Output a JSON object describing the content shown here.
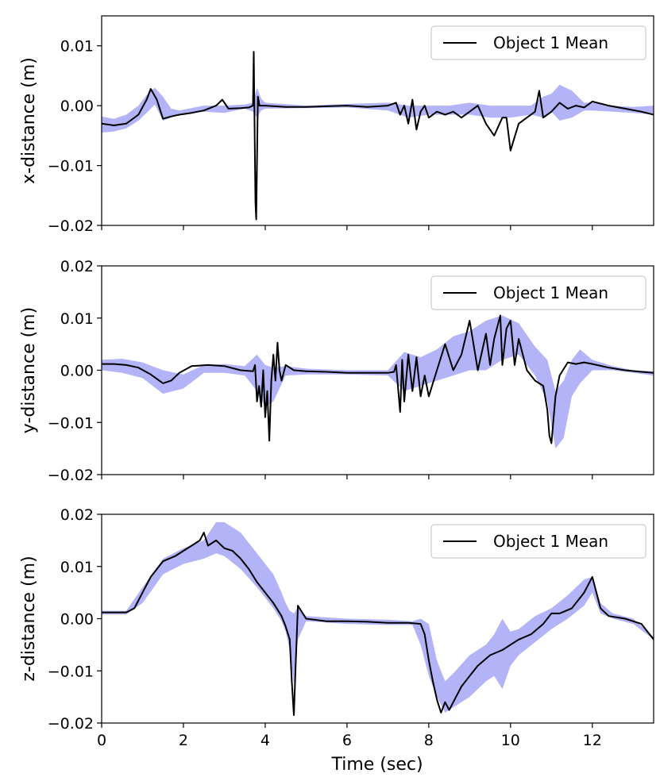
{
  "figure": {
    "xlabel": "Time (sec)",
    "legend_label": "Object 1 Mean"
  },
  "chart_data": [
    {
      "type": "line",
      "ylabel": "x-distance (m)",
      "xlim": [
        0,
        13.5
      ],
      "ylim": [
        -0.02,
        0.015
      ],
      "yticks": [
        0.01,
        0.0,
        -0.01,
        -0.02
      ],
      "ytick_labels": [
        "0.01",
        "0.00",
        "−0.01",
        "−0.02"
      ],
      "xticks": [
        0,
        2,
        4,
        6,
        8,
        10,
        12
      ],
      "legend": "top-right",
      "band_color": "#b3b3f7",
      "line_color": "#000000",
      "series": [
        {
          "name": "Object 1 Mean",
          "x": [
            0,
            0.3,
            0.6,
            0.9,
            1.1,
            1.2,
            1.35,
            1.5,
            1.7,
            1.9,
            2.2,
            2.5,
            2.8,
            2.95,
            3.1,
            3.4,
            3.6,
            3.7,
            3.72,
            3.76,
            3.78,
            3.82,
            3.86,
            4.0,
            4.5,
            5.0,
            5.5,
            6.0,
            6.5,
            7.0,
            7.2,
            7.3,
            7.4,
            7.5,
            7.6,
            7.7,
            7.8,
            7.9,
            8.0,
            8.2,
            8.4,
            8.6,
            8.8,
            9.0,
            9.2,
            9.4,
            9.6,
            9.8,
            9.9,
            10.0,
            10.2,
            10.4,
            10.6,
            10.7,
            10.8,
            11.0,
            11.2,
            11.4,
            11.6,
            11.8,
            12.0,
            12.4,
            12.8,
            13.2,
            13.5
          ],
          "y": [
            -0.003,
            -0.0033,
            -0.003,
            -0.0015,
            0.001,
            0.0028,
            0.001,
            -0.0022,
            -0.0018,
            -0.0015,
            -0.0012,
            -0.0008,
            0.0,
            0.001,
            -0.0005,
            -0.0004,
            -0.0003,
            0.0,
            0.009,
            -0.016,
            -0.019,
            0.0015,
            0.0,
            0.0,
            -0.0002,
            -0.0002,
            -0.0001,
            0.0,
            -0.0002,
            0.0,
            0.0005,
            -0.0015,
            0.0,
            -0.003,
            0.001,
            -0.004,
            -0.001,
            0.0,
            -0.002,
            -0.001,
            -0.0015,
            -0.001,
            -0.002,
            -0.001,
            0.0,
            -0.003,
            -0.005,
            -0.002,
            -0.002,
            -0.0075,
            -0.003,
            -0.002,
            -0.001,
            0.0025,
            -0.002,
            -0.001,
            0.0005,
            -0.0005,
            0.0,
            -0.0003,
            0.0007,
            0.0,
            -0.0005,
            -0.001,
            -0.0015
          ]
        }
      ],
      "band": {
        "x": [
          0,
          0.3,
          0.6,
          0.9,
          1.1,
          1.3,
          1.5,
          1.7,
          1.9,
          2.5,
          3.0,
          3.5,
          3.7,
          3.8,
          3.9,
          4.0,
          5.0,
          6.0,
          7.0,
          7.5,
          8.0,
          8.5,
          9.0,
          9.5,
          10.0,
          10.5,
          10.8,
          11.0,
          11.2,
          11.5,
          11.8,
          12.0,
          12.5,
          13.0,
          13.5
        ],
        "low": [
          -0.0045,
          -0.0043,
          -0.0038,
          -0.0025,
          -0.0012,
          0.0002,
          -0.0025,
          -0.002,
          -0.0015,
          -0.001,
          -0.0012,
          -0.0005,
          -0.001,
          -0.002,
          -0.0008,
          -0.0005,
          -0.0004,
          -0.0003,
          -0.0008,
          -0.002,
          -0.0015,
          -0.0015,
          -0.0015,
          -0.002,
          -0.002,
          -0.0015,
          -0.002,
          -0.001,
          -0.0025,
          -0.002,
          -0.0008,
          -0.0008,
          -0.001,
          -0.0012,
          -0.0015
        ],
        "high": [
          -0.0018,
          -0.0022,
          -0.0015,
          0.0,
          0.0018,
          0.003,
          0.0015,
          -0.0005,
          -0.0008,
          0.0,
          0.0,
          0.0002,
          0.0005,
          0.003,
          0.0012,
          0.0005,
          0.0,
          0.0003,
          0.0005,
          0.0,
          0.0,
          0.0,
          0.0005,
          0.0,
          0.0,
          0.0,
          0.0015,
          0.002,
          0.0035,
          0.0025,
          0.0005,
          0.0005,
          0.0,
          -0.0002,
          0.0
        ]
      }
    },
    {
      "type": "line",
      "ylabel": "y-distance (m)",
      "xlim": [
        0,
        13.5
      ],
      "ylim": [
        -0.02,
        0.02
      ],
      "yticks": [
        0.02,
        0.01,
        0.0,
        -0.01,
        -0.02
      ],
      "ytick_labels": [
        "0.02",
        "0.01",
        "0.00",
        "−0.01",
        "−0.02"
      ],
      "xticks": [
        0,
        2,
        4,
        6,
        8,
        10,
        12
      ],
      "legend": "top-right",
      "band_color": "#b3b3f7",
      "line_color": "#000000",
      "series": [
        {
          "name": "Object 1 Mean",
          "x": [
            0,
            0.3,
            0.6,
            0.9,
            1.2,
            1.5,
            1.7,
            1.9,
            2.2,
            2.6,
            3.0,
            3.4,
            3.7,
            3.75,
            3.8,
            3.85,
            3.9,
            3.95,
            4.0,
            4.05,
            4.1,
            4.15,
            4.2,
            4.25,
            4.3,
            4.35,
            4.4,
            4.5,
            4.7,
            5.0,
            5.5,
            6.0,
            6.5,
            7.0,
            7.15,
            7.2,
            7.3,
            7.35,
            7.4,
            7.5,
            7.6,
            7.7,
            7.8,
            7.9,
            8.0,
            8.2,
            8.4,
            8.6,
            8.8,
            9.0,
            9.2,
            9.4,
            9.5,
            9.6,
            9.75,
            9.8,
            9.9,
            10.0,
            10.1,
            10.2,
            10.4,
            10.6,
            10.8,
            10.9,
            10.95,
            11.0,
            11.1,
            11.2,
            11.4,
            11.6,
            11.8,
            12.0,
            12.4,
            12.8,
            13.2,
            13.5
          ],
          "y": [
            0.0012,
            0.0012,
            0.001,
            0.0005,
            -0.0008,
            -0.0025,
            -0.002,
            -0.0005,
            0.0008,
            0.001,
            0.0008,
            0.0,
            -0.0002,
            0.001,
            -0.006,
            -0.003,
            -0.007,
            0.0,
            -0.009,
            -0.004,
            -0.0135,
            -0.002,
            0.003,
            -0.002,
            0.0053,
            0.0,
            -0.002,
            0.001,
            0.0,
            -0.0002,
            -0.0003,
            -0.0005,
            -0.0005,
            -0.0005,
            -0.0003,
            0.001,
            -0.008,
            0.002,
            -0.006,
            0.003,
            -0.004,
            0.0025,
            -0.005,
            -0.001,
            -0.005,
            0.0,
            0.005,
            0.0,
            0.003,
            0.0095,
            0.0,
            0.007,
            0.001,
            0.006,
            0.0105,
            0.001,
            0.008,
            0.0095,
            0.001,
            0.006,
            0.0,
            -0.002,
            -0.003,
            -0.0075,
            -0.0125,
            -0.014,
            -0.005,
            -0.001,
            0.0015,
            0.0012,
            0.0015,
            0.0012,
            0.0005,
            0.0,
            -0.0003,
            -0.0005
          ]
        }
      ],
      "band": {
        "x": [
          0,
          0.5,
          1.0,
          1.5,
          2.0,
          2.5,
          3.0,
          3.5,
          3.8,
          4.0,
          4.2,
          4.5,
          5.0,
          6.0,
          7.0,
          7.4,
          7.8,
          8.2,
          8.6,
          9.0,
          9.4,
          9.8,
          10.2,
          10.6,
          10.9,
          11.1,
          11.3,
          11.5,
          11.7,
          12.0,
          12.5,
          13.0,
          13.5
        ],
        "low": [
          0.0,
          -0.0005,
          -0.0015,
          -0.0045,
          -0.0035,
          -0.0005,
          -0.0005,
          -0.001,
          -0.004,
          -0.007,
          -0.006,
          -0.001,
          -0.0008,
          -0.0008,
          -0.001,
          -0.004,
          -0.003,
          -0.002,
          -0.001,
          0.0,
          0.0,
          0.002,
          0.003,
          -0.001,
          -0.006,
          -0.015,
          -0.013,
          -0.005,
          -0.0025,
          0.0,
          0.0,
          -0.0005,
          -0.001
        ],
        "high": [
          0.002,
          0.0022,
          0.0015,
          0.0,
          -0.0008,
          0.001,
          0.0012,
          0.0008,
          0.003,
          0.001,
          0.0005,
          0.0008,
          0.0003,
          0.0,
          0.0,
          0.0035,
          0.0025,
          0.004,
          0.0065,
          0.0075,
          0.0095,
          0.0105,
          0.009,
          0.0045,
          0.002,
          -0.004,
          -0.002,
          0.002,
          0.004,
          0.002,
          0.0008,
          0.0,
          -0.0002
        ]
      }
    },
    {
      "type": "line",
      "ylabel": "z-distance (m)",
      "xlim": [
        0,
        13.5
      ],
      "ylim": [
        -0.02,
        0.02
      ],
      "yticks": [
        0.02,
        0.01,
        0.0,
        -0.01,
        -0.02
      ],
      "ytick_labels": [
        "0.02",
        "0.01",
        "0.00",
        "−0.01",
        "−0.02"
      ],
      "xticks": [
        0,
        2,
        4,
        6,
        8,
        10,
        12
      ],
      "xtick_labels": [
        "0",
        "2",
        "4",
        "6",
        "8",
        "10",
        "12"
      ],
      "legend": "top-right",
      "band_color": "#b3b3f7",
      "line_color": "#000000",
      "series": [
        {
          "name": "Object 1 Mean",
          "x": [
            0,
            0.6,
            0.8,
            1.0,
            1.2,
            1.5,
            1.8,
            2.0,
            2.2,
            2.4,
            2.5,
            2.6,
            2.8,
            3.0,
            3.2,
            3.4,
            3.6,
            3.8,
            4.0,
            4.2,
            4.4,
            4.5,
            4.6,
            4.65,
            4.7,
            4.75,
            4.8,
            5.0,
            5.5,
            6.0,
            6.5,
            7.0,
            7.5,
            7.8,
            7.9,
            8.0,
            8.1,
            8.2,
            8.3,
            8.4,
            8.5,
            8.6,
            8.8,
            9.0,
            9.2,
            9.5,
            9.8,
            10.0,
            10.2,
            10.5,
            10.8,
            11.0,
            11.2,
            11.5,
            11.8,
            12.0,
            12.2,
            12.4,
            12.8,
            13.2,
            13.5
          ],
          "y": [
            0.0012,
            0.0012,
            0.002,
            0.005,
            0.008,
            0.011,
            0.012,
            0.013,
            0.014,
            0.015,
            0.0165,
            0.014,
            0.015,
            0.0135,
            0.013,
            0.0115,
            0.0095,
            0.007,
            0.005,
            0.003,
            0.0005,
            -0.0015,
            -0.004,
            -0.012,
            -0.0185,
            -0.008,
            0.0025,
            0.0,
            -0.0005,
            -0.0005,
            -0.0006,
            -0.0008,
            -0.0008,
            -0.001,
            -0.003,
            -0.008,
            -0.012,
            -0.0155,
            -0.018,
            -0.016,
            -0.0175,
            -0.016,
            -0.013,
            -0.011,
            -0.009,
            -0.007,
            -0.006,
            -0.005,
            -0.004,
            -0.003,
            -0.001,
            0.001,
            0.001,
            0.002,
            0.005,
            0.008,
            0.002,
            0.0005,
            0.0,
            -0.001,
            -0.004
          ]
        }
      ],
      "band": {
        "x": [
          0,
          0.6,
          1.0,
          1.5,
          2.0,
          2.5,
          2.8,
          3.0,
          3.4,
          3.8,
          4.2,
          4.4,
          4.5,
          4.6,
          4.7,
          4.8,
          5.0,
          6.0,
          7.0,
          7.6,
          7.8,
          8.0,
          8.2,
          8.4,
          8.6,
          9.0,
          9.4,
          9.6,
          9.8,
          10.0,
          10.2,
          10.6,
          11.0,
          11.4,
          11.8,
          12.0,
          12.2,
          12.5,
          13.0,
          13.5
        ],
        "low": [
          0.0008,
          0.0008,
          0.003,
          0.0085,
          0.0105,
          0.0115,
          0.0125,
          0.012,
          0.0095,
          0.006,
          0.002,
          -0.0005,
          -0.0025,
          -0.006,
          -0.0125,
          -0.004,
          -0.0005,
          -0.001,
          -0.0012,
          -0.0012,
          -0.005,
          -0.011,
          -0.015,
          -0.018,
          -0.017,
          -0.015,
          -0.012,
          -0.011,
          -0.0135,
          -0.009,
          -0.007,
          -0.0045,
          -0.002,
          0.0,
          0.0025,
          0.005,
          0.001,
          0.0,
          -0.001,
          -0.004
        ],
        "high": [
          0.0015,
          0.0015,
          0.006,
          0.0115,
          0.0135,
          0.015,
          0.0185,
          0.0185,
          0.0165,
          0.0125,
          0.0085,
          0.005,
          0.003,
          0.0015,
          0.001,
          0.0022,
          0.0005,
          0.0,
          -0.0002,
          -0.0005,
          0.0,
          -0.001,
          -0.008,
          -0.012,
          -0.0105,
          -0.007,
          -0.005,
          -0.003,
          0.0,
          -0.0025,
          -0.002,
          0.0005,
          0.002,
          0.0045,
          0.0075,
          0.008,
          0.003,
          0.001,
          0.0,
          -0.0035
        ]
      }
    }
  ]
}
